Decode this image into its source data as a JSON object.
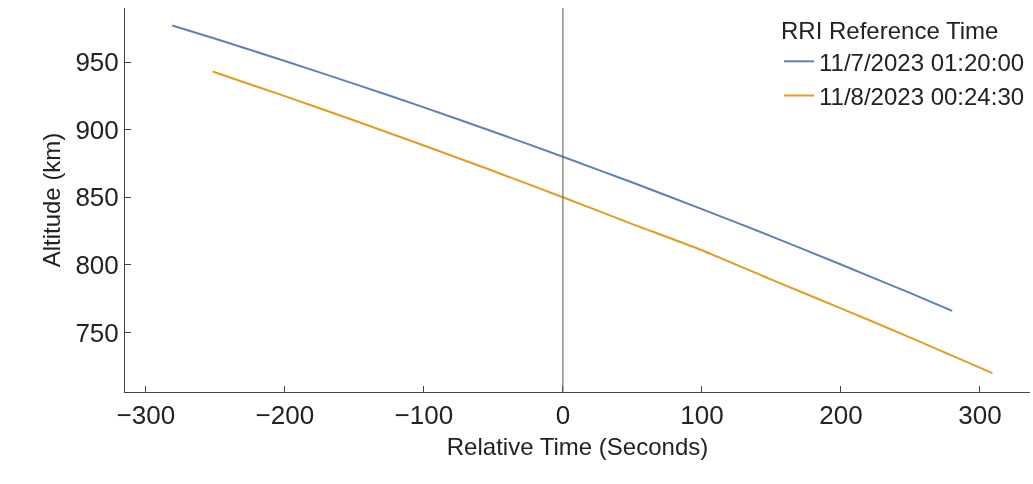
{
  "chart_data": {
    "type": "line",
    "xlabel": "Relative Time (Seconds)",
    "ylabel": "Altitude (km)",
    "legend_title": "RRI Reference Time",
    "legend": "top right",
    "grid": false,
    "marker": "none",
    "line_style": "solid",
    "xlim": [
      -315,
      336
    ],
    "xticks": [
      -300,
      -200,
      -100,
      0,
      100,
      200,
      300
    ],
    "ylim": [
      706,
      990
    ],
    "yticks": [
      750,
      800,
      850,
      900,
      950
    ],
    "ref_lines": [
      {
        "axis": "x",
        "value": 0,
        "color": "#555555"
      }
    ],
    "series": [
      {
        "name": "11/7/2023 01:20:00",
        "color": "#5e81b5",
        "x": [
          -281,
          -250,
          -200,
          -150,
          -100,
          -50,
          0,
          50,
          100,
          150,
          200,
          250,
          280
        ],
        "values": [
          977,
          967.2,
          950.8,
          933.9,
          916.5,
          898.5,
          880,
          860.9,
          841.3,
          821.1,
          800.3,
          779.1,
          766
        ]
      },
      {
        "name": "11/8/2023 00:24:30",
        "color": "#e19c24",
        "x": [
          -252,
          -200,
          -150,
          -100,
          -50,
          0,
          50,
          100,
          150,
          200,
          250,
          309
        ],
        "values": [
          943,
          924.8,
          906.8,
          888.3,
          869.4,
          850,
          830.2,
          810.8,
          789.1,
          767.9,
          746.2,
          720
        ]
      }
    ]
  }
}
